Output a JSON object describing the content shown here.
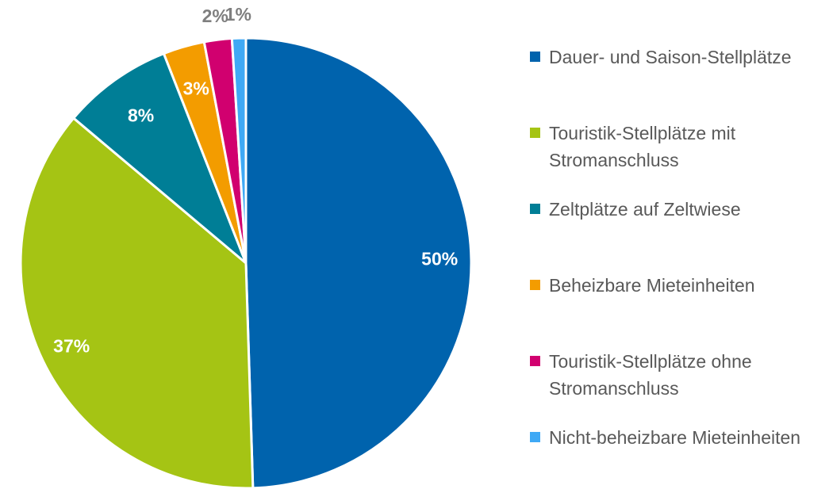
{
  "chart_data": {
    "type": "pie",
    "categories": [
      "Dauer- und Saison-Stellplätze",
      "Touristik-Stellplätze mit Stromanschluss",
      "Zeltplätze auf Zeltwiese",
      "Beheizbare Mieteinheiten",
      "Touristik-Stellplätze ohne Stromanschluss",
      "Nicht-beheizbare Mieteinheiten"
    ],
    "values": [
      50,
      37,
      8,
      3,
      2,
      1
    ],
    "value_labels": [
      "50%",
      "37%",
      "8%",
      "3%",
      "2%",
      "1%"
    ],
    "colors": [
      "#0063ad",
      "#a5c414",
      "#007e96",
      "#f39c00",
      "#d1006f",
      "#3fa9f5"
    ],
    "legend": "right"
  }
}
